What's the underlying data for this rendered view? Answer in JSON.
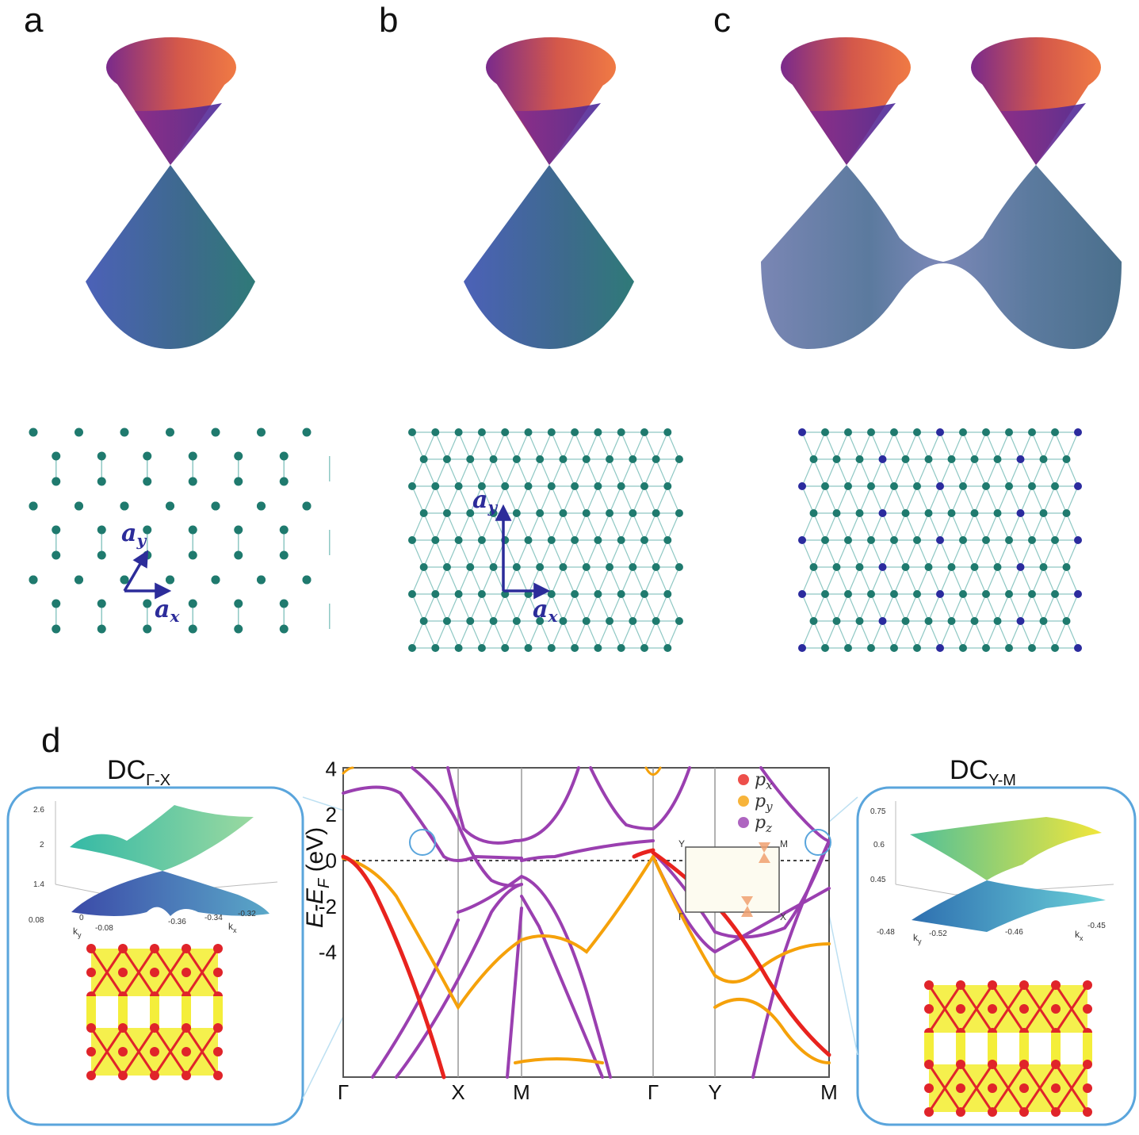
{
  "panels": {
    "a": "a",
    "b": "b",
    "c": "c",
    "d": "d"
  },
  "lattice_vectors": {
    "ax_main": "a",
    "ax_sub": "x",
    "ay_main": "a",
    "ay_sub": "y"
  },
  "band_plot": {
    "ylabel": "E-E",
    "ylabel_sub": "F",
    "ylabel_unit": " (eV)",
    "k_labels": [
      "Γ",
      "X",
      "M",
      "Γ",
      "Y",
      "M"
    ],
    "y_ticks": [
      "4",
      "2",
      "0",
      "-2",
      "-4"
    ],
    "legend": [
      {
        "label": "p",
        "sub": "x",
        "color": "#e8231e"
      },
      {
        "label": "p",
        "sub": "y",
        "color": "#f5a10a"
      },
      {
        "label": "p",
        "sub": "z",
        "color": "#9a3fb0"
      }
    ],
    "bz_inset": {
      "Y": "Y",
      "M": "M",
      "G": "Γ",
      "X": "X"
    }
  },
  "dc_left": {
    "title": "DC",
    "sub": "Γ-X",
    "z_ticks": [
      "2.6",
      "2",
      "1.4"
    ],
    "x_ticks": [
      "0.08",
      "0",
      "-0.08",
      "-0.36",
      "-0.34",
      "-0.32"
    ],
    "k_labels": {
      "ky": "k",
      "ky_sub": "y",
      "kx": "k",
      "kx_sub": "x"
    }
  },
  "dc_right": {
    "title": "DC",
    "sub": "Y-M",
    "z_ticks": [
      "0.75",
      "0.6",
      "0.45"
    ],
    "x_ticks": [
      "-0.48",
      "-0.52",
      "-0.46",
      "-0.45"
    ],
    "k_labels": {
      "ky": "k",
      "ky_sub": "y",
      "kx": "k",
      "kx_sub": "x"
    }
  },
  "colors": {
    "atom": "#1f7a6e",
    "atom_alt": "#2b2b9e",
    "bond": "#8fc8c4",
    "frame": "#5aa5dc",
    "px": "#e8231e",
    "py": "#f5a10a",
    "pz": "#9a3fb0"
  }
}
